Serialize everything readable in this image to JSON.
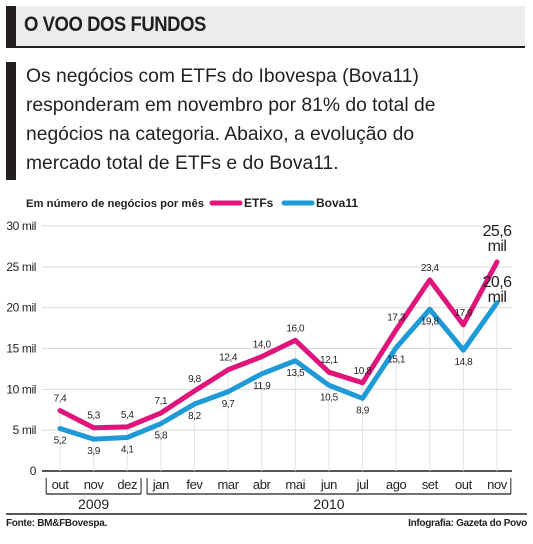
{
  "header": {
    "title": "O VOO DOS FUNDOS"
  },
  "lead": "Os negócios com ETFs do Ibovespa (Bova11)\nresponderam em novembro por 81% do total de\nnegócios na categoria. Abaixo, a evolução do\nmercado total de ETFs e do Bova11.",
  "source": "Fonte: BM&FBovespa.",
  "credit": "Infografia: Gazeta do Povo",
  "colors": {
    "etfs": "#e0147a",
    "bova": "#1e9ad6",
    "grid": "#d9d9d9",
    "text": "#231f20"
  },
  "chart_data": {
    "type": "line",
    "subtitle": "Em número de negócios por mês",
    "categories": [
      "out",
      "nov",
      "dez",
      "jan",
      "fev",
      "mar",
      "abr",
      "mai",
      "jun",
      "jul",
      "ago",
      "set",
      "out",
      "nov"
    ],
    "year_groups": [
      {
        "label": "2009",
        "from": 0,
        "to": 2
      },
      {
        "label": "2010",
        "from": 3,
        "to": 13
      }
    ],
    "y_ticks": [
      {
        "value": 0,
        "label": "0"
      },
      {
        "value": 5,
        "label": "5 mil"
      },
      {
        "value": 10,
        "label": "10 mil"
      },
      {
        "value": 15,
        "label": "15 mil"
      },
      {
        "value": 20,
        "label": "20 mil"
      },
      {
        "value": 25,
        "label": "25 mil"
      },
      {
        "value": 30,
        "label": "30 mil"
      }
    ],
    "ylim": [
      0,
      30
    ],
    "grid": true,
    "legend_position": "top",
    "series": [
      {
        "name": "ETFs",
        "color": "#e0147a",
        "values": [
          7.4,
          5.3,
          5.4,
          7.1,
          9.8,
          12.4,
          14.0,
          16.0,
          12.1,
          10.8,
          17.3,
          23.4,
          17.9,
          25.6
        ],
        "labels": [
          "7,4",
          "5,3",
          "5,4",
          "7,1",
          "9,8",
          "12,4",
          "14,0",
          "16,0",
          "12,1",
          "10,8",
          "17,3",
          "23,4",
          "17,9",
          "25,6\nmil"
        ]
      },
      {
        "name": "Bova11",
        "color": "#1e9ad6",
        "values": [
          5.2,
          3.9,
          4.1,
          5.8,
          8.2,
          9.7,
          11.9,
          13.5,
          10.5,
          8.9,
          15.1,
          19.8,
          14.8,
          20.6
        ],
        "labels": [
          "5,2",
          "3,9",
          "4,1",
          "5,8",
          "8,2",
          "9,7",
          "11,9",
          "13,5",
          "10,5",
          "8,9",
          "15,1",
          "19,8",
          "14,8",
          "20,6\nmil"
        ]
      }
    ]
  }
}
